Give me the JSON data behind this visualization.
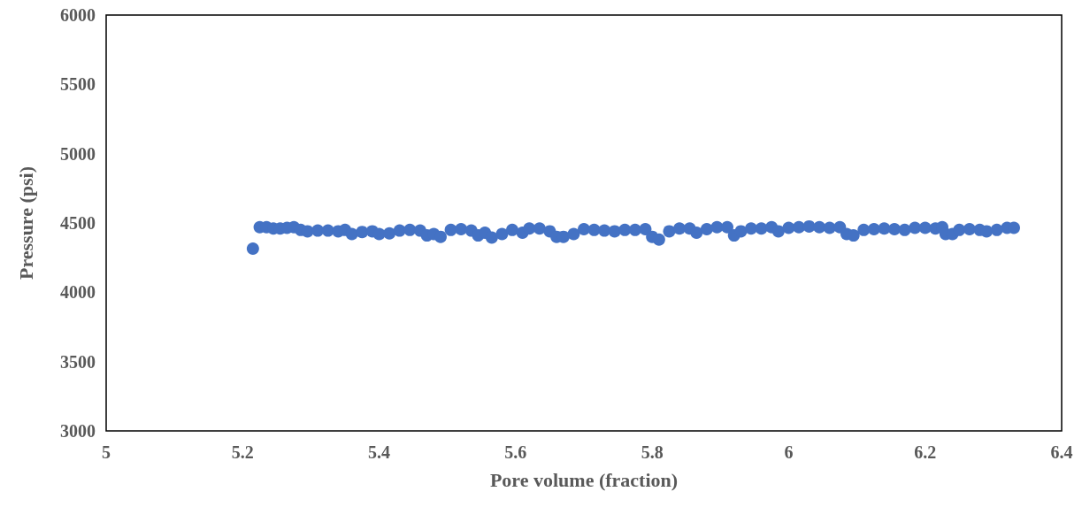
{
  "chart_data": {
    "type": "scatter",
    "xlabel": "Pore volume (fraction)",
    "ylabel": "Pressure (psi)",
    "xlim": [
      5,
      6.4
    ],
    "xticks": [
      5,
      5.2,
      5.4,
      5.6,
      5.8,
      6,
      6.2,
      6.4
    ],
    "ylim": [
      3000,
      6000
    ],
    "yticks": [
      3000,
      3500,
      4000,
      4500,
      5000,
      5500,
      6000
    ],
    "grid": false,
    "marker": "circle",
    "series": [
      {
        "color": "#4472c4",
        "x": [
          5.215,
          5.225,
          5.235,
          5.245,
          5.255,
          5.265,
          5.275,
          5.285,
          5.295,
          5.31,
          5.325,
          5.34,
          5.35,
          5.36,
          5.375,
          5.39,
          5.4,
          5.415,
          5.43,
          5.445,
          5.46,
          5.47,
          5.48,
          5.49,
          5.505,
          5.52,
          5.535,
          5.545,
          5.555,
          5.565,
          5.58,
          5.595,
          5.61,
          5.62,
          5.635,
          5.65,
          5.66,
          5.67,
          5.685,
          5.7,
          5.715,
          5.73,
          5.745,
          5.76,
          5.775,
          5.79,
          5.8,
          5.81,
          5.825,
          5.84,
          5.855,
          5.865,
          5.88,
          5.895,
          5.91,
          5.92,
          5.93,
          5.945,
          5.96,
          5.975,
          5.985,
          6.0,
          6.015,
          6.03,
          6.045,
          6.06,
          6.075,
          6.085,
          6.095,
          6.11,
          6.125,
          6.14,
          6.155,
          6.17,
          6.185,
          6.2,
          6.215,
          6.225,
          6.23,
          6.24,
          6.25,
          6.265,
          6.28,
          6.29,
          6.305,
          6.32,
          6.33
        ],
        "values": [
          4315,
          4470,
          4470,
          4460,
          4460,
          4465,
          4470,
          4450,
          4440,
          4445,
          4445,
          4440,
          4450,
          4420,
          4435,
          4440,
          4420,
          4425,
          4445,
          4450,
          4445,
          4410,
          4420,
          4400,
          4450,
          4455,
          4445,
          4410,
          4430,
          4395,
          4420,
          4450,
          4430,
          4460,
          4460,
          4440,
          4400,
          4400,
          4420,
          4455,
          4450,
          4445,
          4440,
          4450,
          4450,
          4455,
          4400,
          4380,
          4440,
          4460,
          4460,
          4430,
          4455,
          4470,
          4470,
          4410,
          4440,
          4460,
          4460,
          4470,
          4440,
          4465,
          4470,
          4475,
          4470,
          4465,
          4470,
          4420,
          4410,
          4450,
          4455,
          4460,
          4455,
          4450,
          4465,
          4465,
          4460,
          4470,
          4420,
          4420,
          4450,
          4455,
          4450,
          4440,
          4450,
          4465,
          4465
        ]
      }
    ]
  }
}
